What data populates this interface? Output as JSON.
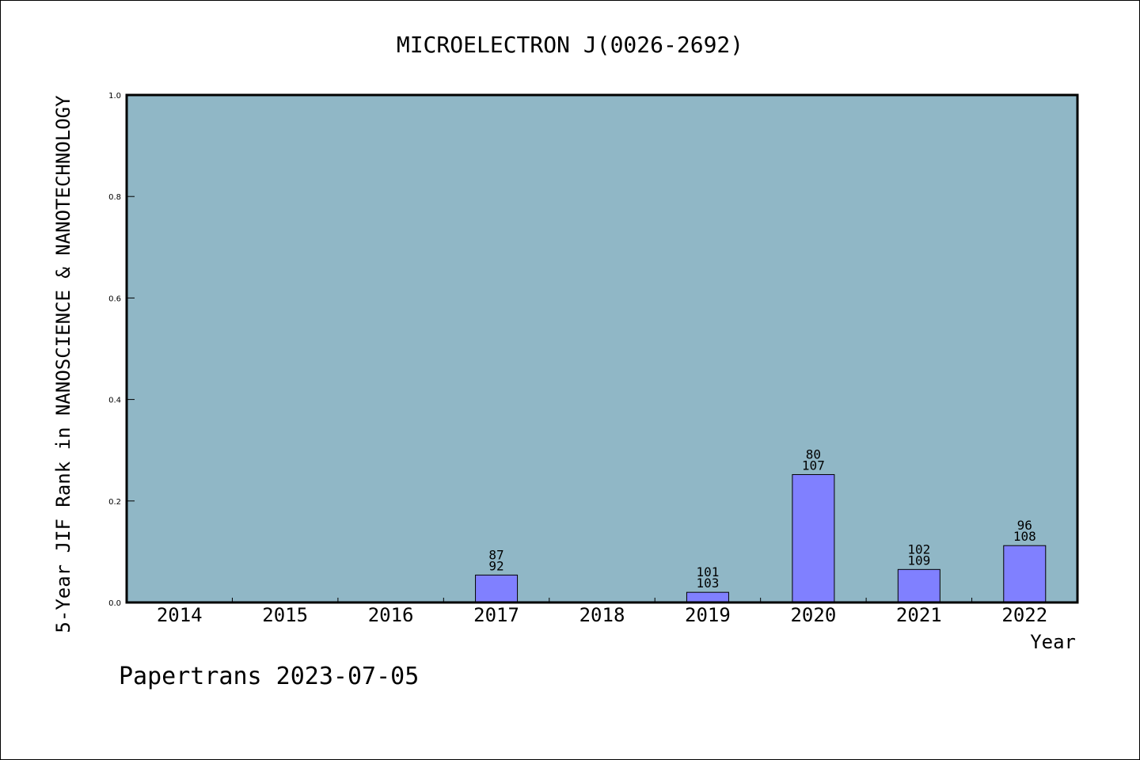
{
  "chart_data": {
    "type": "bar",
    "title": "MICROELECTRON J(0026-2692)",
    "xlabel": "Year",
    "ylabel": "5-Year JIF Rank in NANOSCIENCE & NANOTECHNOLOGY",
    "ylim": [
      0.0,
      1.0
    ],
    "yticks": [
      "0.0",
      "0.2",
      "0.4",
      "0.6",
      "0.8",
      "1.0"
    ],
    "categories": [
      "2014",
      "2015",
      "2016",
      "2017",
      "2018",
      "2019",
      "2020",
      "2021",
      "2022"
    ],
    "values": [
      0,
      0,
      0,
      0.054,
      0,
      0.02,
      0.252,
      0.065,
      0.112
    ],
    "rank_labels": [
      "",
      "",
      "",
      "87",
      "",
      "101",
      "80",
      "102",
      "96"
    ],
    "total_labels": [
      "",
      "",
      "",
      "92",
      "",
      "103",
      "107",
      "109",
      "108"
    ],
    "grid": false,
    "colors": {
      "plot_background": "#90b7c6",
      "bar_fill": "#8080ff",
      "bar_stroke": "#000000"
    }
  },
  "footer": "Papertrans 2023-07-05"
}
